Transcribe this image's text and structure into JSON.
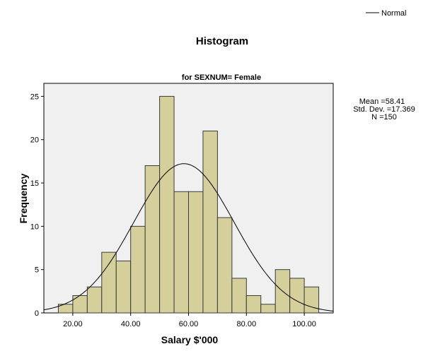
{
  "chart_data": {
    "type": "bar",
    "title": "Histogram",
    "subtitle": "for SEXNUM= Female",
    "xlabel": "Salary $'000",
    "ylabel": "Frequency",
    "legend": {
      "label": "Normal",
      "placement": "top-right"
    },
    "xlim": [
      10,
      110
    ],
    "ylim": [
      0,
      26.5
    ],
    "x_ticks": [
      20,
      40,
      60,
      80,
      100
    ],
    "x_tick_labels": [
      "20.00",
      "40.00",
      "60.00",
      "80.00",
      "100.00"
    ],
    "y_ticks": [
      0,
      5,
      10,
      15,
      20,
      25
    ],
    "bin_width": 5,
    "bin_centers": [
      17.5,
      22.5,
      27.5,
      32.5,
      37.5,
      42.5,
      47.5,
      52.5,
      57.5,
      62.5,
      67.5,
      72.5,
      77.5,
      82.5,
      87.5,
      92.5,
      97.5,
      102.5
    ],
    "frequencies": [
      1,
      2,
      3,
      7,
      6,
      10,
      17,
      25,
      14,
      14,
      21,
      11,
      4,
      2,
      1,
      5,
      4,
      3
    ],
    "normal_curve": {
      "mean": 58.41,
      "std_dev": 17.369,
      "n": 150
    },
    "stats_text": [
      "Mean =58.41",
      "Std. Dev. =17.369",
      "N =150"
    ],
    "grid": false,
    "colors": {
      "bar_fill": "#d5cf9b",
      "bar_stroke": "#3a3a3a",
      "plot_bg": "#f0f0f0",
      "curve": "#000000"
    }
  }
}
